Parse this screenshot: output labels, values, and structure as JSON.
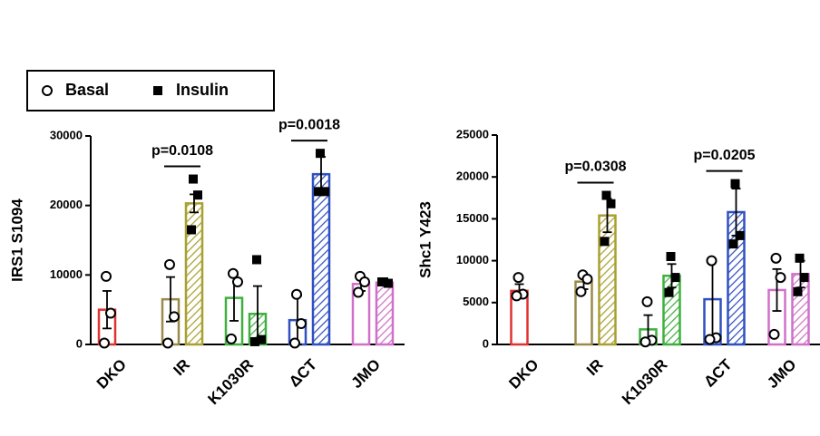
{
  "chart_data": [
    {
      "type": "bar",
      "y_label": "IRS1 S1094",
      "categories": [
        "DKO",
        "IR",
        "K1030R",
        "ΔCT",
        "JMO"
      ],
      "category_colors": [
        "#e03232",
        "#9a8a4a",
        "#3fb03f",
        "#3050c0",
        "#d070c8"
      ],
      "insulin_colors": [
        "#e03232",
        "#a8a030",
        "#3fb03f",
        "#3050c0",
        "#d070c8"
      ],
      "ylim": [
        0,
        30000
      ],
      "yticks": [
        0,
        10000,
        20000,
        30000
      ],
      "legend": "top",
      "series": [
        {
          "name": "Basal",
          "marker": "circle",
          "fill": "open",
          "color": "#000000",
          "values": [
            5000,
            6500,
            6700,
            3500,
            8700
          ],
          "errors": [
            2700,
            3200,
            3300,
            3500,
            1000
          ],
          "points": [
            [
              9800,
              4500,
              200
            ],
            [
              11500,
              4000,
              200
            ],
            [
              10200,
              9000,
              800
            ],
            [
              7200,
              3000,
              200
            ],
            [
              9800,
              9000,
              7500
            ]
          ]
        },
        {
          "name": "Insulin",
          "marker": "square",
          "fill": "hatched",
          "color": "#000000",
          "values": [
            null,
            20300,
            4400,
            24500,
            8900
          ],
          "errors": [
            null,
            1300,
            4000,
            2500,
            200
          ],
          "points": [
            null,
            [
              23800,
              21500,
              16500
            ],
            [
              12200,
              700,
              400
            ],
            [
              27500,
              22000,
              22000
            ],
            [
              9000,
              8800,
              9000
            ]
          ]
        }
      ],
      "annotations": [
        {
          "text": "p=0.0108",
          "category": "IR"
        },
        {
          "text": "p=0.0018",
          "category": "ΔCT"
        }
      ]
    },
    {
      "type": "bar",
      "y_label": "Shc1 Y423",
      "categories": [
        "DKO",
        "IR",
        "K1030R",
        "ΔCT",
        "JMO"
      ],
      "category_colors": [
        "#e03232",
        "#9a8a4a",
        "#3fb03f",
        "#3050c0",
        "#d070c8"
      ],
      "insulin_colors": [
        "#e03232",
        "#a8a030",
        "#3fb03f",
        "#3050c0",
        "#d070c8"
      ],
      "ylim": [
        0,
        25000
      ],
      "yticks": [
        0,
        5000,
        10000,
        15000,
        20000,
        25000
      ],
      "legend": false,
      "series": [
        {
          "name": "Basal",
          "marker": "circle",
          "fill": "open",
          "color": "#000000",
          "values": [
            6400,
            7500,
            1800,
            5400,
            6500
          ],
          "errors": [
            800,
            900,
            1700,
            4600,
            2500
          ],
          "points": [
            [
              8000,
              6000,
              5800
            ],
            [
              8300,
              7800,
              6300
            ],
            [
              5100,
              500,
              300
            ],
            [
              10000,
              800,
              600
            ],
            [
              10300,
              8000,
              1200
            ]
          ]
        },
        {
          "name": "Insulin",
          "marker": "square",
          "fill": "hatched",
          "color": "#000000",
          "values": [
            null,
            15400,
            8200,
            15800,
            8400
          ],
          "errors": [
            null,
            2000,
            1400,
            2800,
            1600
          ],
          "points": [
            null,
            [
              17800,
              16800,
              12300
            ],
            [
              10500,
              8000,
              6200
            ],
            [
              19200,
              13000,
              12000
            ],
            [
              10300,
              8000,
              6300
            ]
          ]
        }
      ],
      "annotations": [
        {
          "text": "p=0.0308",
          "category": "IR"
        },
        {
          "text": "p=0.0205",
          "category": "ΔCT"
        }
      ]
    }
  ]
}
